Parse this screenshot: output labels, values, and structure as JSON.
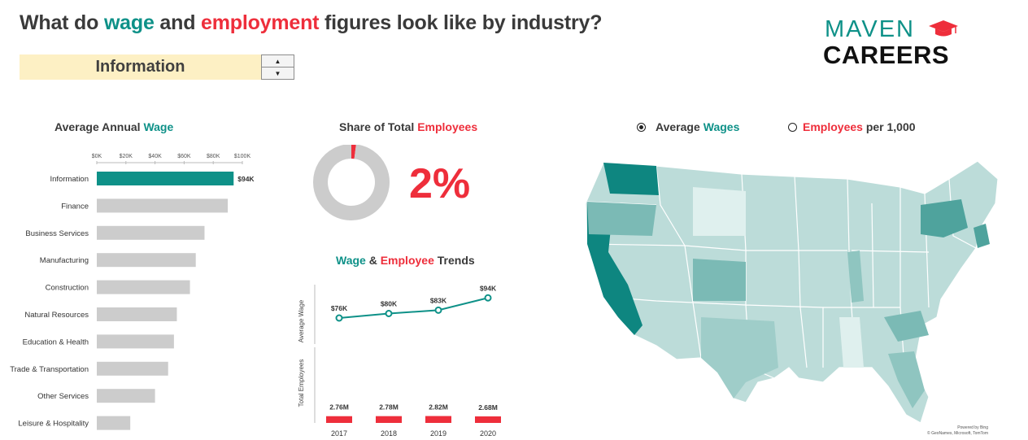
{
  "header": {
    "title_parts": [
      "What do ",
      "wage",
      " and ",
      "employment",
      " figures look like by industry?"
    ]
  },
  "selector": {
    "value": "Information",
    "up_icon": "triangle-up-icon",
    "down_icon": "triangle-down-icon",
    "up_glyph": "▲",
    "down_glyph": "▼"
  },
  "logo": {
    "top": "MAVEN",
    "bottom": "CAREERS",
    "icon": "graduation-cap-icon"
  },
  "colors": {
    "teal": "#0e9188",
    "red": "#ee2e3b",
    "grey": "#cccccc",
    "map_light": "#cfe6e4",
    "map_dark": "#0e8680"
  },
  "chart_data": [
    {
      "id": "wage-bar",
      "type": "bar",
      "orientation": "horizontal",
      "title_parts": [
        "Average Annual ",
        "Wage"
      ],
      "categories": [
        "Information",
        "Finance",
        "Business Services",
        "Manufacturing",
        "Construction",
        "Natural Resources",
        "Education & Health",
        "Trade & Transportation",
        "Other Services",
        "Leisure & Hospitality"
      ],
      "values": [
        94,
        90,
        74,
        68,
        64,
        55,
        53,
        49,
        40,
        23
      ],
      "unit": "K",
      "highlight_index": 0,
      "highlight_label": "$94K",
      "xlim": [
        0,
        100
      ],
      "ticks": [
        "$0K",
        "$20K",
        "$40K",
        "$60K",
        "$80K",
        "$100K"
      ],
      "tick_values": [
        0,
        20,
        40,
        60,
        80,
        100
      ],
      "axis_position": "top",
      "grid": false
    },
    {
      "id": "share-donut",
      "type": "pie",
      "style": "donut",
      "title_parts": [
        "Share of Total ",
        "Employees"
      ],
      "values": [
        2,
        98
      ],
      "value_label": "2%"
    },
    {
      "id": "trend-line",
      "type": "line",
      "title_parts": [
        "Wage",
        " & ",
        "Employee",
        " Trends"
      ],
      "x": [
        "2017",
        "2018",
        "2019",
        "2020"
      ],
      "values": [
        76,
        80,
        83,
        94
      ],
      "labels": [
        "$76K",
        "$80K",
        "$83K",
        "$94K"
      ],
      "ylabel": "Average Wage",
      "ylim": [
        0,
        100
      ]
    },
    {
      "id": "employee-bar",
      "type": "bar",
      "x": [
        "2017",
        "2018",
        "2019",
        "2020"
      ],
      "values": [
        2.76,
        2.78,
        2.82,
        2.68
      ],
      "labels": [
        "2.76M",
        "2.78M",
        "2.82M",
        "2.68M"
      ],
      "ylabel": "Total Employees"
    },
    {
      "id": "us-map",
      "type": "heatmap",
      "subtype": "choropleth",
      "region": "United States",
      "measure_options": [
        {
          "parts": [
            "Average ",
            "Wages"
          ],
          "selected": true
        },
        {
          "parts": [
            "Employees",
            " per 1,000"
          ],
          "selected": false
        }
      ],
      "credit_lines": [
        "Powered by Bing",
        "© GeoNames, Microsoft, TomTom"
      ]
    }
  ]
}
